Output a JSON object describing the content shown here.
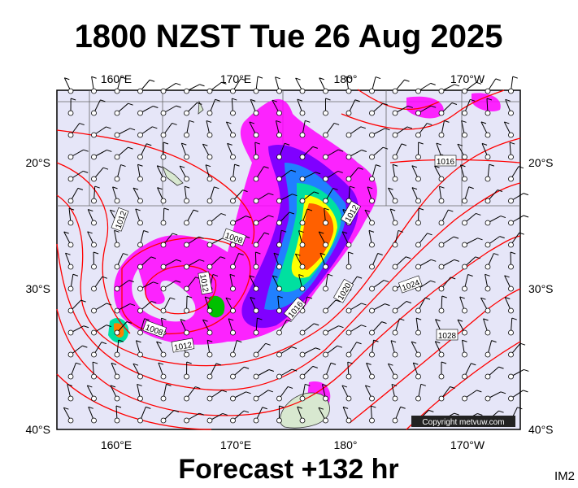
{
  "title": "1800 NZST Tue 26 Aug 2025",
  "footer": "Forecast +132 hr",
  "corner_label": "IM2",
  "copyright": "Copyright metvuw.com",
  "longitude_labels": [
    "160°E",
    "170°E",
    "180°",
    "170°W"
  ],
  "latitude_labels": [
    "20°S",
    "30°S",
    "40°S"
  ],
  "isobar_labels": [
    "1016",
    "1012",
    "1008",
    "1012",
    "1012",
    "1020",
    "1024",
    "1016",
    "1008",
    "1012",
    "1028"
  ]
}
